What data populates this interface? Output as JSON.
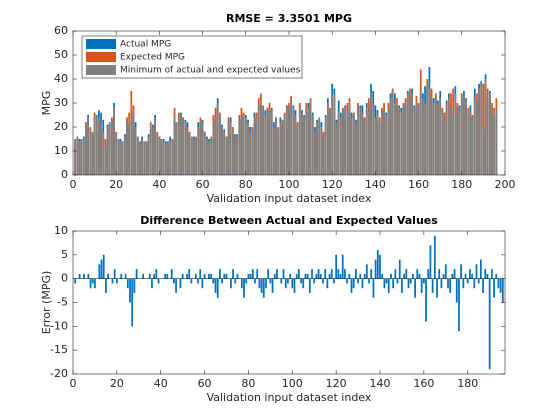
{
  "chart_data": [
    {
      "type": "bar",
      "title": "RMSE = 3.3501 MPG",
      "x_label": "Validation input dataset index",
      "y_label": "MPG",
      "legend": "upper left",
      "xlim": [
        0,
        200
      ],
      "xticks": [
        0,
        20,
        40,
        60,
        80,
        100,
        120,
        140,
        160,
        180,
        200
      ],
      "ylim": [
        0,
        60
      ],
      "yticks": [
        0,
        10,
        20,
        30,
        40,
        50,
        60
      ],
      "series": [
        {
          "name": "Actual MPG",
          "color": "#0072BD",
          "values": [
            14,
            16,
            15,
            15,
            16,
            22,
            25,
            18,
            17,
            24,
            25,
            27,
            26,
            23,
            12,
            21,
            22,
            23,
            30,
            17,
            15,
            15,
            14,
            17,
            22,
            21,
            25,
            26,
            22,
            16,
            14,
            16,
            14,
            14,
            17,
            20,
            21,
            25,
            17,
            16,
            15,
            15,
            14,
            14,
            16,
            14,
            25,
            22,
            24,
            26,
            24,
            23,
            22,
            17,
            16,
            16,
            15,
            22,
            22,
            23,
            18,
            16,
            15,
            15,
            22,
            24,
            32,
            25,
            21,
            19,
            16,
            22,
            24,
            19,
            17,
            17,
            23,
            24,
            25,
            25,
            23,
            20,
            19,
            26,
            24,
            29,
            30,
            27,
            27,
            27,
            27,
            28,
            22,
            24,
            19,
            24,
            21,
            25,
            29,
            28,
            30,
            29,
            27,
            21,
            28,
            27,
            25,
            27,
            30,
            31,
            26,
            20,
            23,
            23,
            22,
            16,
            25,
            32,
            27,
            38,
            36,
            23,
            31,
            26,
            27,
            29,
            27,
            30,
            26,
            25,
            23,
            28,
            29,
            29,
            23,
            30,
            28,
            38,
            35,
            29,
            27,
            22,
            27,
            27,
            26,
            28,
            34,
            35,
            34,
            29,
            29,
            28,
            28,
            31,
            35,
            32,
            36,
            29,
            30,
            29,
            35,
            34,
            37,
            37,
            45,
            32,
            32,
            32,
            31,
            35,
            26,
            23,
            31,
            34,
            29,
            25,
            37,
            28,
            29,
            33,
            35,
            32,
            26,
            29,
            24,
            36,
            31,
            38,
            39,
            19,
            42,
            32,
            35,
            28,
            25,
            27
          ]
        },
        {
          "name": "Expected MPG",
          "color": "#D95319",
          "values": [
            15,
            16,
            14,
            15,
            15,
            22,
            24,
            20,
            18,
            26,
            25,
            24,
            22,
            18,
            15,
            20,
            22,
            24,
            28,
            18,
            15,
            14,
            14,
            16,
            24,
            26,
            35,
            29,
            20,
            16,
            14,
            15,
            14,
            14,
            16,
            22,
            20,
            23,
            18,
            16,
            15,
            14,
            13,
            14,
            14,
            15,
            28,
            22,
            26,
            25,
            24,
            22,
            20,
            18,
            16,
            15,
            16,
            20,
            24,
            22,
            18,
            15,
            14,
            16,
            25,
            28,
            30,
            26,
            20,
            18,
            16,
            24,
            22,
            20,
            16,
            17,
            25,
            28,
            26,
            24,
            22,
            18,
            20,
            24,
            26,
            32,
            34,
            29,
            25,
            28,
            30,
            27,
            20,
            24,
            20,
            22,
            23,
            26,
            28,
            30,
            33,
            28,
            25,
            22,
            30,
            26,
            24,
            30,
            28,
            32,
            25,
            18,
            22,
            24,
            20,
            18,
            24,
            30,
            28,
            33,
            34,
            22,
            26,
            24,
            28,
            28,
            30,
            32,
            24,
            26,
            22,
            30,
            28,
            26,
            24,
            28,
            32,
            34,
            29,
            24,
            26,
            24,
            28,
            30,
            25,
            30,
            32,
            36,
            30,
            32,
            28,
            26,
            30,
            32,
            34,
            36,
            34,
            28,
            33,
            30,
            44,
            32,
            30,
            40,
            36,
            36,
            30,
            34,
            30,
            32,
            28,
            26,
            30,
            32,
            34,
            36,
            34,
            30,
            28,
            34,
            33,
            31,
            28,
            26,
            25,
            32,
            34,
            36,
            38,
            38,
            40,
            36,
            34,
            30,
            28,
            32
          ]
        },
        {
          "name": "Minimum of actual and expected values",
          "color": "#808080",
          "values": [
            14,
            16,
            14,
            15,
            15,
            22,
            24,
            18,
            17,
            24,
            25,
            24,
            22,
            18,
            12,
            20,
            22,
            23,
            28,
            17,
            15,
            14,
            14,
            16,
            22,
            21,
            25,
            26,
            20,
            16,
            14,
            15,
            14,
            14,
            16,
            20,
            20,
            23,
            17,
            16,
            15,
            14,
            13,
            14,
            14,
            14,
            25,
            22,
            24,
            25,
            24,
            22,
            20,
            17,
            16,
            15,
            15,
            20,
            22,
            22,
            18,
            15,
            14,
            15,
            22,
            24,
            30,
            25,
            20,
            18,
            16,
            22,
            22,
            19,
            16,
            17,
            23,
            24,
            25,
            24,
            22,
            18,
            19,
            24,
            24,
            29,
            30,
            27,
            25,
            27,
            27,
            27,
            20,
            24,
            19,
            22,
            21,
            25,
            28,
            28,
            30,
            28,
            25,
            21,
            28,
            26,
            24,
            27,
            28,
            31,
            25,
            18,
            22,
            23,
            20,
            16,
            24,
            30,
            27,
            33,
            34,
            22,
            26,
            24,
            27,
            28,
            27,
            30,
            24,
            25,
            22,
            28,
            28,
            26,
            23,
            28,
            28,
            34,
            29,
            24,
            26,
            22,
            27,
            27,
            25,
            28,
            32,
            35,
            30,
            29,
            28,
            26,
            28,
            31,
            34,
            32,
            34,
            28,
            30,
            29,
            35,
            32,
            30,
            37,
            36,
            32,
            30,
            32,
            30,
            32,
            26,
            23,
            30,
            32,
            29,
            25,
            34,
            28,
            28,
            33,
            33,
            31,
            26,
            26,
            24,
            32,
            31,
            36,
            38,
            19,
            40,
            32,
            34,
            28,
            25,
            27
          ]
        }
      ]
    },
    {
      "type": "bar",
      "title": "Difference Between Actual and Expected Values",
      "x_label": "Validation input dataset index",
      "y_label": "Error (MPG)",
      "color": "#0072BD",
      "xlim": [
        0,
        197
      ],
      "xticks": [
        0,
        20,
        40,
        60,
        80,
        100,
        120,
        140,
        160,
        180
      ],
      "ylim": [
        -20,
        10
      ],
      "yticks": [
        -20,
        -15,
        -10,
        -5,
        0,
        5,
        10
      ],
      "values": [
        -1,
        0,
        1,
        0,
        1,
        0,
        1,
        -2,
        -1,
        -2,
        0,
        3,
        4,
        5,
        -3,
        1,
        0,
        -1,
        2,
        -1,
        0,
        1,
        0,
        1,
        -2,
        -5,
        -10,
        -3,
        2,
        0,
        0,
        1,
        0,
        0,
        1,
        -2,
        1,
        2,
        -1,
        0,
        0,
        1,
        1,
        0,
        2,
        -1,
        -3,
        0,
        -2,
        1,
        0,
        1,
        2,
        -1,
        0,
        1,
        -1,
        2,
        -2,
        1,
        0,
        1,
        1,
        -1,
        -3,
        -4,
        2,
        -1,
        1,
        1,
        0,
        -2,
        2,
        -1,
        1,
        0,
        -2,
        -4,
        -1,
        1,
        1,
        2,
        -1,
        2,
        -2,
        -3,
        -4,
        -2,
        2,
        -1,
        -3,
        1,
        2,
        0,
        -1,
        2,
        -2,
        -1,
        1,
        -2,
        -3,
        1,
        2,
        -1,
        -2,
        1,
        1,
        -3,
        2,
        -1,
        1,
        2,
        1,
        -1,
        2,
        -2,
        1,
        2,
        -1,
        5,
        2,
        1,
        5,
        2,
        -1,
        1,
        -3,
        -2,
        2,
        -1,
        1,
        -2,
        1,
        3,
        -1,
        2,
        -4,
        4,
        6,
        5,
        1,
        -2,
        -1,
        -3,
        1,
        -2,
        2,
        -1,
        4,
        -3,
        1,
        2,
        -2,
        -1,
        1,
        -4,
        2,
        1,
        -3,
        -1,
        -9,
        2,
        7,
        -3,
        9,
        -4,
        2,
        -2,
        1,
        3,
        -2,
        -3,
        1,
        2,
        -5,
        -11,
        3,
        -2,
        1,
        -1,
        2,
        1,
        -2,
        3,
        -1,
        4,
        -3,
        2,
        1,
        -19,
        2,
        -4,
        1,
        -2,
        -3,
        -5
      ]
    }
  ]
}
